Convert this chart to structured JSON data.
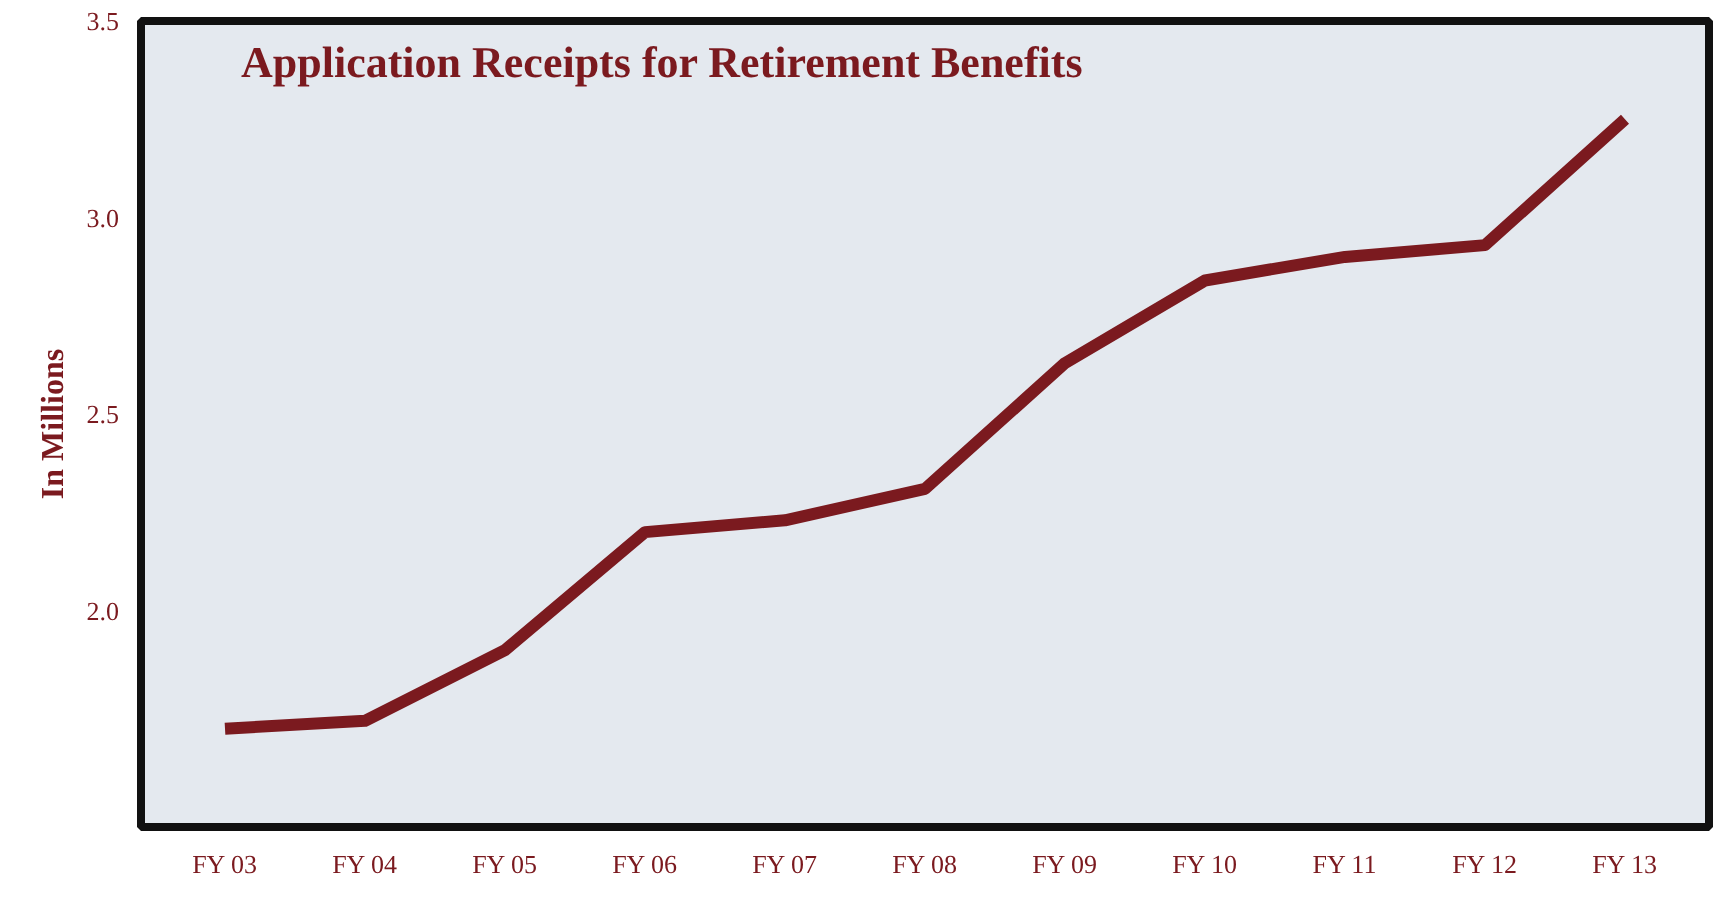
{
  "chart_data": {
    "type": "line",
    "title": "Application Receipts for Retirement Benefits",
    "ylabel": "In Millions",
    "categories": [
      "FY 03",
      "FY 04",
      "FY 05",
      "FY 06",
      "FY 07",
      "FY 08",
      "FY 09",
      "FY 10",
      "FY 11",
      "FY 12",
      "FY 13"
    ],
    "series": [
      {
        "color": "#7b1a1f",
        "values": [
          1.7,
          1.72,
          1.9,
          2.2,
          2.23,
          2.31,
          2.63,
          2.84,
          2.9,
          2.93,
          3.25
        ]
      }
    ],
    "ylim": [
      1.45,
      3.5
    ],
    "yticks": [
      {
        "value": 2.0,
        "label": "2.0"
      },
      {
        "value": 2.5,
        "label": "2.5"
      },
      {
        "value": 3.0,
        "label": "3.0"
      },
      {
        "value": 3.5,
        "label": "3.5"
      }
    ],
    "grid": false,
    "marker": "none",
    "line_style": "solid"
  }
}
